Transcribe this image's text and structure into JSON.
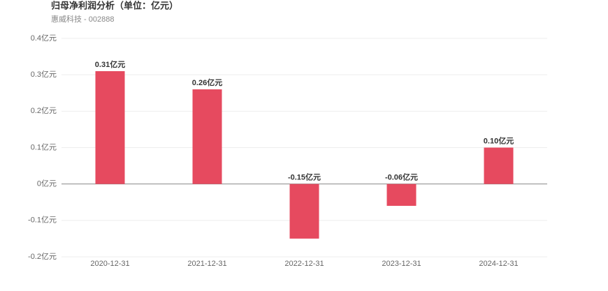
{
  "chart_data": {
    "type": "bar",
    "title": "归母净利润分析（单位：亿元）",
    "subtitle": "惠威科技 - 002888",
    "categories": [
      "2020-12-31",
      "2021-12-31",
      "2022-12-31",
      "2023-12-31",
      "2024-12-31"
    ],
    "values": [
      0.31,
      0.26,
      -0.15,
      -0.06,
      0.1
    ],
    "value_labels": [
      "0.31亿元",
      "0.26亿元",
      "-0.15亿元",
      "-0.06亿元",
      "0.10亿元"
    ],
    "color": "#e64a5f",
    "ylim": [
      -0.2,
      0.4
    ],
    "yticks": [
      {
        "value": -0.2,
        "label": "-0.2亿元"
      },
      {
        "value": -0.1,
        "label": "-0.1亿元"
      },
      {
        "value": 0,
        "label": "0亿元"
      },
      {
        "value": 0.1,
        "label": "0.1亿元"
      },
      {
        "value": 0.2,
        "label": "0.2亿元"
      },
      {
        "value": 0.3,
        "label": "0.3亿元"
      },
      {
        "value": 0.4,
        "label": "0.4亿元"
      }
    ],
    "grid": true
  }
}
